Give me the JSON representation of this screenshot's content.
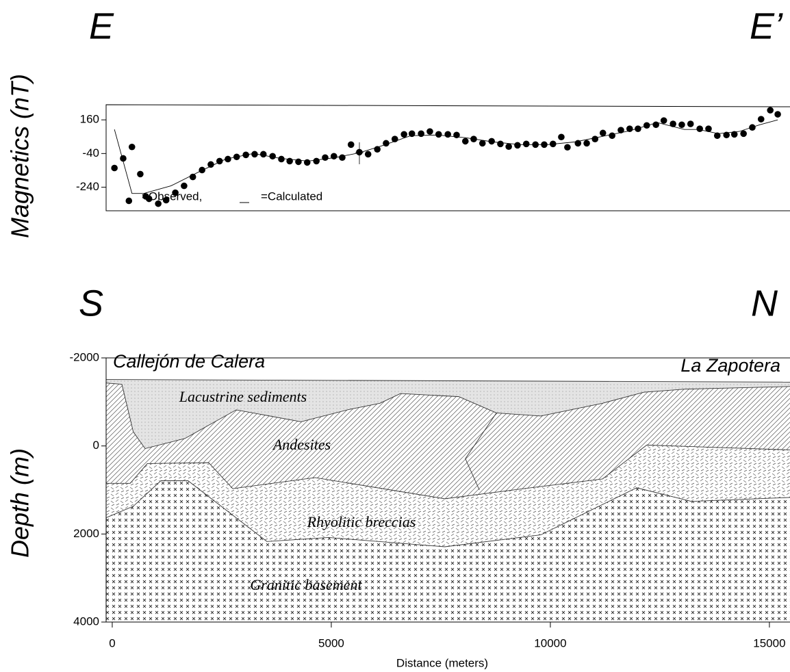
{
  "chart_data": [
    {
      "type": "line",
      "left_label": "E",
      "right_label": "E’",
      "y_label": "Magnetics (nT)",
      "xlim": [
        -140,
        15470
      ],
      "ylim": [
        -380,
        250
      ],
      "yticks": [
        160,
        -40,
        -240
      ],
      "series": [
        {
          "name": "=Observed,",
          "mode": "markers",
          "color": "#000000",
          "x": [
            50,
            250,
            380,
            450,
            640,
            840,
            1050,
            1230,
            1440,
            1640,
            1840,
            2050,
            2250,
            2450,
            2640,
            2840,
            3050,
            3250,
            3450,
            3660,
            3860,
            4050,
            4250,
            4450,
            4660,
            4860,
            5060,
            5250,
            5450,
            5640,
            5840,
            6050,
            6250,
            6450,
            6660,
            6840,
            7050,
            7250,
            7450,
            7660,
            7860,
            8060,
            8250,
            8450,
            8660,
            8860,
            9050,
            9250,
            9450,
            9660,
            9860,
            10060,
            10250,
            10390,
            10630,
            10830,
            11020,
            11200,
            11410,
            11610,
            11810,
            12000,
            12200,
            12410,
            12590,
            12800,
            13000,
            13200,
            13410,
            13610,
            13810,
            14020,
            14200,
            14410,
            14610,
            14810,
            15020,
            15190
          ],
          "values": [
            -126,
            -69,
            -321,
            -1,
            -162,
            -309,
            -338,
            -317,
            -273,
            -232,
            -179,
            -138,
            -105,
            -85,
            -73,
            -60,
            -48,
            -44,
            -44,
            -56,
            -73,
            -85,
            -89,
            -93,
            -85,
            -64,
            -56,
            -64,
            13,
            -32,
            -44,
            -15,
            21,
            46,
            74,
            78,
            78,
            91,
            74,
            74,
            70,
            33,
            46,
            21,
            33,
            17,
            1,
            9,
            17,
            13,
            13,
            17,
            58,
            -3,
            21,
            21,
            46,
            82,
            66,
            99,
            107,
            107,
            127,
            131,
            156,
            136,
            131,
            136,
            107,
            107,
            66,
            70,
            74,
            78,
            115,
            164,
            217,
            193
          ]
        },
        {
          "name": "=Calculated",
          "mode": "line",
          "color": "#000000",
          "x": [
            50,
            450,
            720,
            1340,
            1970,
            2590,
            3220,
            3840,
            4470,
            5090,
            5640,
            6190,
            6810,
            7440,
            8060,
            8690,
            9310,
            9940,
            10560,
            11190,
            11810,
            12440,
            13060,
            13380,
            13840,
            14310,
            14780,
            15190
          ],
          "values": [
            103,
            -277,
            -277,
            -232,
            -150,
            -73,
            -40,
            -69,
            -85,
            -64,
            -36,
            9,
            66,
            70,
            54,
            29,
            13,
            13,
            29,
            62,
            95,
            144,
            103,
            103,
            78,
            91,
            131,
            160
          ]
        }
      ]
    },
    {
      "type": "cross-section",
      "left_label": "S",
      "right_label": "N",
      "left_place": "Callejón de Calera",
      "right_place": "La Zapotera",
      "x_label": "Distance (meters)",
      "y_label": "Depth (m)",
      "xlim": [
        -140,
        15470
      ],
      "ylim": [
        -2000,
        4000
      ],
      "y_inverted": true,
      "xticks": [
        0,
        5000,
        10000,
        15000
      ],
      "yticks": [
        -2000,
        0,
        2000,
        4000
      ],
      "boundaries": [
        {
          "x": [
            -140,
            15470
          ],
          "depth": [
            -1510,
            -1450
          ]
        },
        {
          "x": [
            -140,
            220,
            480,
            750,
            1660,
            2830,
            4310,
            5410,
            6110,
            6580,
            7910,
            8770,
            9780,
            11190,
            12130,
            13060,
            15470
          ],
          "depth": [
            -1430,
            -1400,
            -320,
            60,
            -170,
            -820,
            -550,
            -830,
            -970,
            -1190,
            -1120,
            -750,
            -680,
            -970,
            -1220,
            -1290,
            -1350
          ]
        },
        {
          "x": [
            -140,
            410,
            800,
            2200,
            2750,
            4630,
            7590,
            9630,
            11190,
            12200,
            15470
          ],
          "depth": [
            850,
            850,
            400,
            380,
            970,
            720,
            1200,
            940,
            750,
            -20,
            90
          ]
        },
        {
          "x": [
            -140,
            480,
            1110,
            1730,
            3530,
            4940,
            7590,
            9780,
            11970,
            13220,
            15470
          ],
          "depth": [
            1630,
            1370,
            790,
            790,
            2170,
            2080,
            2290,
            2020,
            950,
            1260,
            1170
          ]
        }
      ],
      "faults": [
        {
          "x": [
            8770,
            8060,
            8380
          ],
          "depth": [
            -750,
            290,
            1000
          ]
        }
      ],
      "layers": [
        {
          "name": "Lacustrine sediments",
          "pattern": "dots",
          "color": "#e4e4e4"
        },
        {
          "name": "Andesites",
          "pattern": "diagonal",
          "color": "#ffffff"
        },
        {
          "name": "Rhyolitic breccias",
          "pattern": "breccia",
          "color": "#ffffff"
        },
        {
          "name": "Granitic basement",
          "pattern": "cross",
          "color": "#ffffff"
        }
      ]
    }
  ]
}
